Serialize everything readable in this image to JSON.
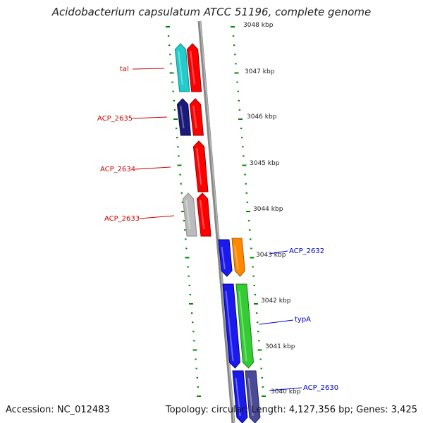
{
  "title": "Acidobacterium capsulatum ATCC 51196, complete genome",
  "footer": {
    "accession": "Accession: NC_012483",
    "topology": "Topology: circular; Length: 4,127,356 bp; Genes: 3,425"
  },
  "axis": {
    "unit": "kbp",
    "ticks": [
      "3048 kbp",
      "3047 kbp",
      "3046 kbp",
      "3045 kbp",
      "3044 kbp",
      "3043 kbp",
      "3042 kbp",
      "3041 kbp",
      "3040 kbp"
    ]
  },
  "genes": [
    {
      "label": "tal",
      "label_color": "#cc0000",
      "strand": "reverse",
      "track": "outer",
      "color": "#ff0000",
      "outline": "#990000"
    },
    {
      "label": "",
      "strand": "reverse",
      "track": "inner",
      "color": "#22cccc",
      "outline": "#118888"
    },
    {
      "label": "ACP_2635",
      "label_color": "#cc0000",
      "strand": "reverse",
      "track": "outer",
      "color": "#ff0000",
      "outline": "#990000"
    },
    {
      "label": "",
      "strand": "reverse",
      "track": "inner",
      "color": "#1a1a7a",
      "outline": "#0a0a44"
    },
    {
      "label": "ACP_2634",
      "label_color": "#cc0000",
      "strand": "reverse",
      "track": "outer",
      "color": "#ff0000",
      "outline": "#990000"
    },
    {
      "label": "ACP_2633",
      "label_color": "#cc0000",
      "strand": "reverse",
      "track": "outer",
      "color": "#ff0000",
      "outline": "#990000"
    },
    {
      "label": "",
      "strand": "reverse",
      "track": "inner",
      "color": "#bbbbbb",
      "outline": "#888888"
    },
    {
      "label": "ACP_2632",
      "label_color": "#0000cc",
      "strand": "forward",
      "track": "inner",
      "color": "#1a1aee",
      "outline": "#000088"
    },
    {
      "label": "",
      "strand": "forward",
      "track": "outer",
      "color": "#ff8800",
      "outline": "#aa5500"
    },
    {
      "label": "typA",
      "label_color": "#0000cc",
      "strand": "forward",
      "track": "outer",
      "color": "#33cc33",
      "outline": "#1a7a1a"
    },
    {
      "label": "",
      "strand": "forward",
      "track": "inner",
      "color": "#1a1aee",
      "outline": "#000088"
    },
    {
      "label": "ACP_2630",
      "label_color": "#0000cc",
      "strand": "forward",
      "track": "outer",
      "color": "#4a4a99",
      "outline": "#222255"
    },
    {
      "label": "",
      "strand": "forward",
      "track": "inner",
      "color": "#1a1aee",
      "outline": "#000088"
    }
  ],
  "colors": {
    "backbone": "#888888",
    "tick_marks": "#008800"
  }
}
